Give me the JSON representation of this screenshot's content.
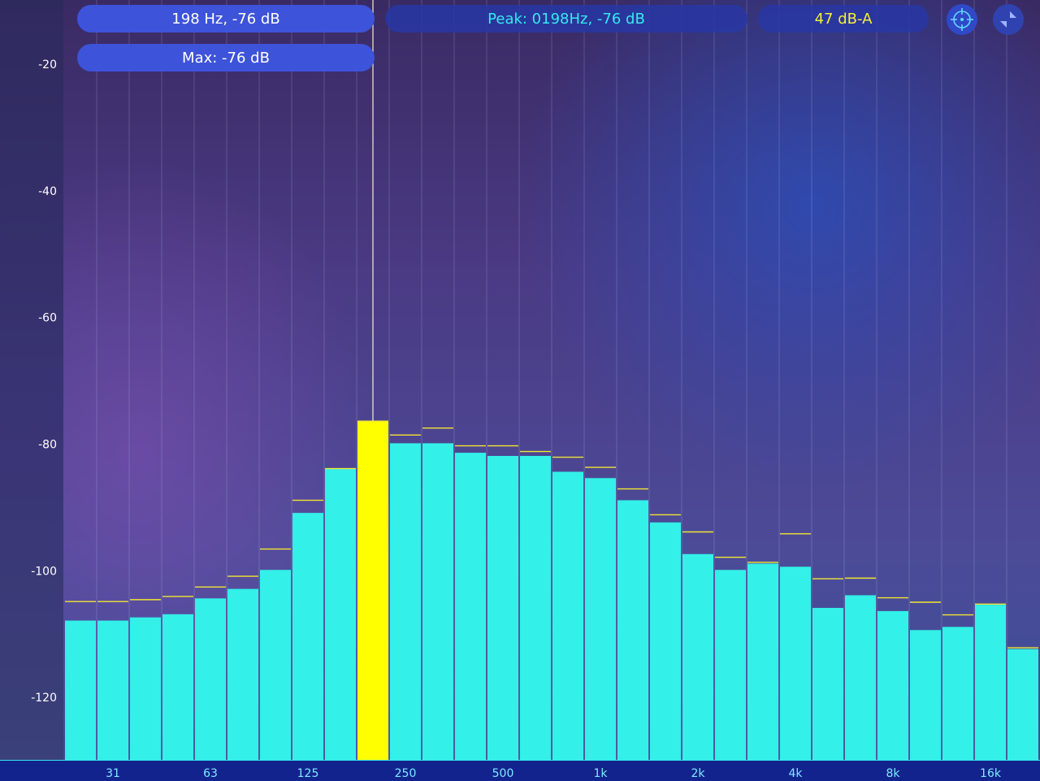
{
  "readouts": {
    "cursor": "198 Hz, -76 dB",
    "max": "Max: -76 dB",
    "peak": "Peak: 0198Hz, -76 dB",
    "level": "47 dB-A"
  },
  "controls": {
    "target_icon": "crosshair-icon",
    "collapse_icon": "collapse-arrows-icon"
  },
  "colors": {
    "bar": "#33f0e8",
    "highlight_bar": "#ffff00",
    "peak_marker": "#f2e633",
    "label_text": "#ffffff",
    "freq_label_text": "#7ee9ff",
    "bottom_bar": "#13238d"
  },
  "chart_data": {
    "type": "bar",
    "title": "",
    "xlabel": "",
    "ylabel": "",
    "ylim": [
      -130,
      -10
    ],
    "yticks": [
      -20,
      -40,
      -60,
      -80,
      -100,
      -120
    ],
    "grid": true,
    "x_tick_labels": [
      "31",
      "63",
      "125",
      "250",
      "500",
      "1k",
      "2k",
      "4k",
      "8k",
      "16k"
    ],
    "highlight_index": 9,
    "series": [
      {
        "values": [
          -108,
          -108,
          -107.5,
          -107,
          -104.5,
          -103,
          -100,
          -91,
          -84,
          -76.5,
          -80,
          -80,
          -81.5,
          -82,
          -82,
          -84.5,
          -85.5,
          -89,
          -92.5,
          -97.5,
          -100,
          -99,
          -99.5,
          -106,
          -104,
          -106.5,
          -109.5,
          -109,
          -105.5,
          -112.5
        ]
      },
      {
        "values": [
          -105,
          -105,
          -104.7,
          -104.2,
          -102.7,
          -101,
          -96.7,
          -89,
          -84,
          -76.5,
          -78.7,
          -77.6,
          -80.4,
          -80.4,
          -81.3,
          -82.2,
          -83.8,
          -87.2,
          -91.3,
          -94,
          -98,
          -98.8,
          -94.3,
          -101.4,
          -101.3,
          -104.4,
          -105.1,
          -107.1,
          -105.4,
          -112.3
        ]
      }
    ]
  }
}
